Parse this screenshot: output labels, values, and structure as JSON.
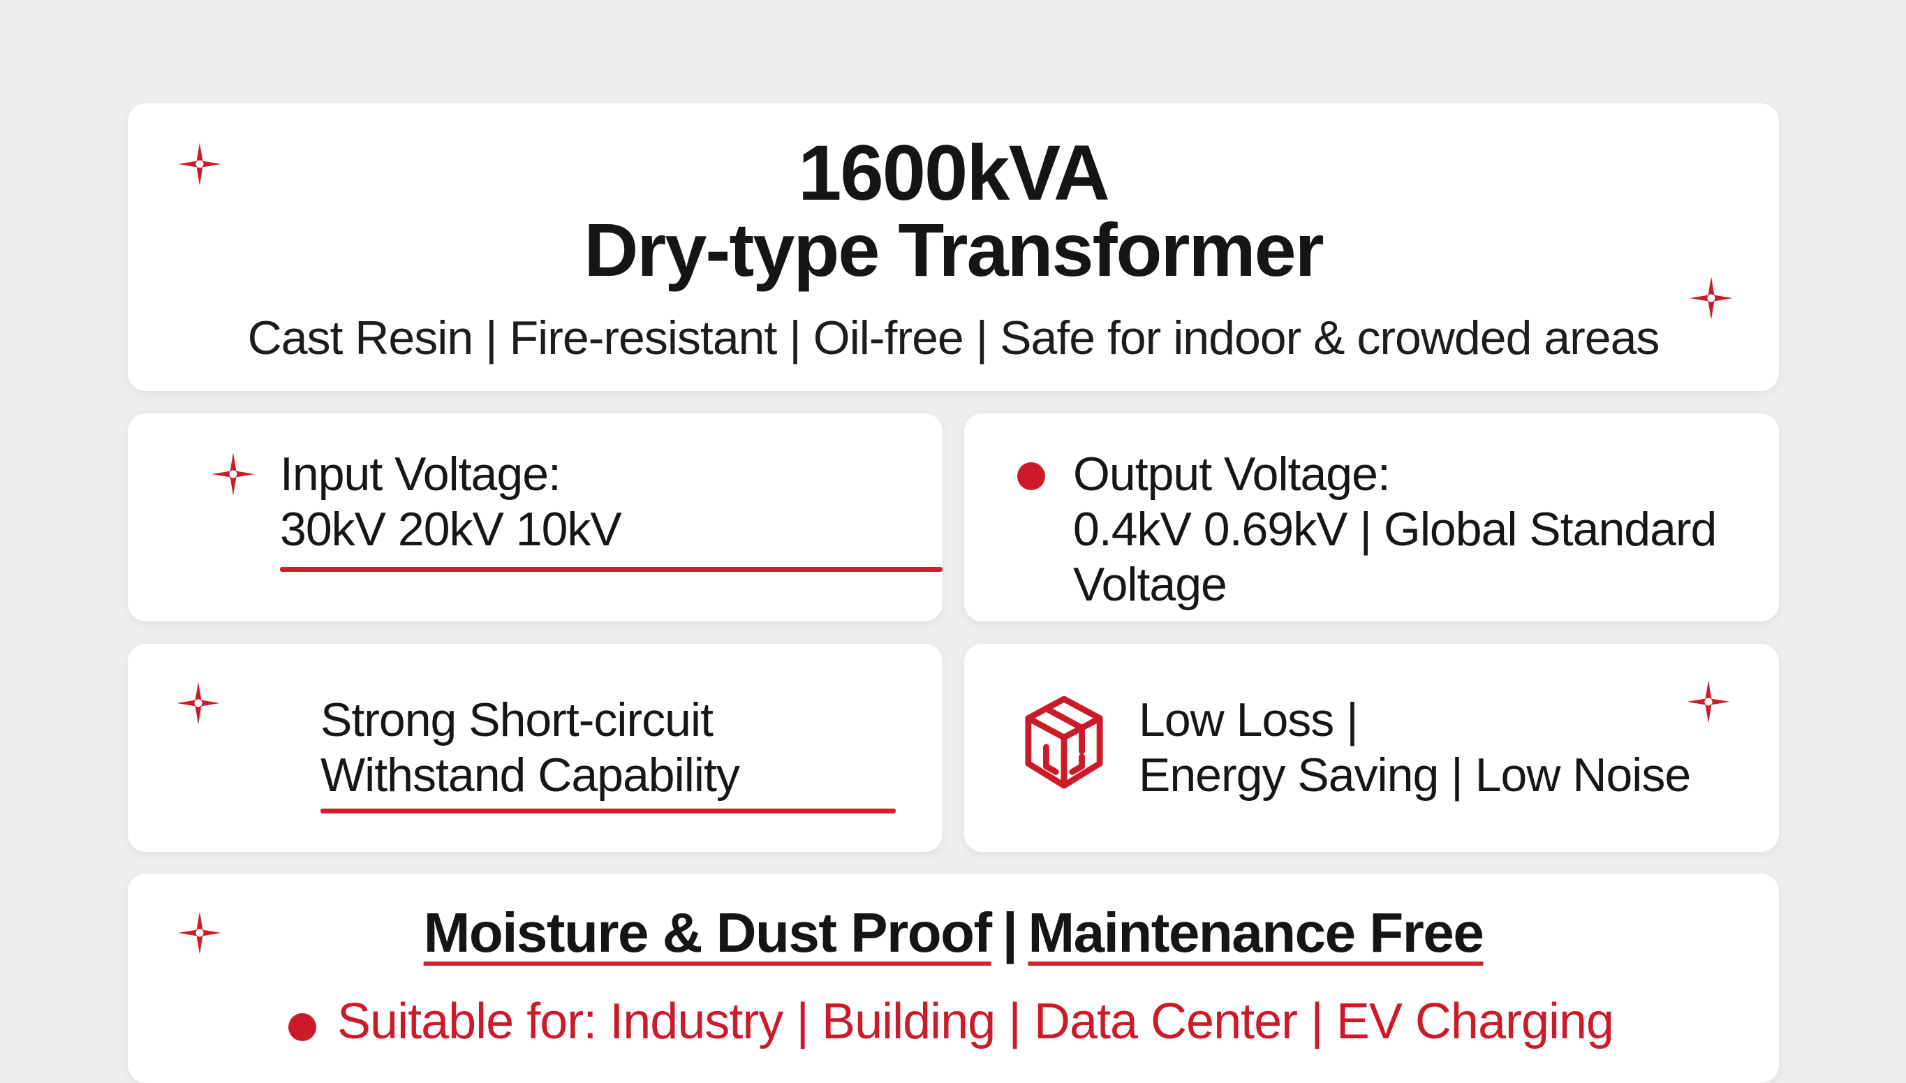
{
  "header": {
    "title_line1": "1600kVA",
    "title_line2": "Dry-type Transformer",
    "subtitle": "Cast Resin | Fire-resistant | Oil-free | Safe for indoor & crowded areas"
  },
  "input_card": {
    "line1": "Input Voltage:",
    "line2": "30kV 20kV 10kV"
  },
  "output_card": {
    "line1": "Output Voltage:",
    "line2": "0.4kV 0.69kV | Global Standard",
    "line3": "Voltage"
  },
  "short_circuit_card": {
    "line1": "Strong Short-circuit",
    "line2": "Withstand Capability"
  },
  "loss_card": {
    "line1": "Low Loss |",
    "line2": "Energy Saving | Low Noise"
  },
  "bottom_card": {
    "feature1": "Moisture & Dust Proof",
    "separator": "|",
    "feature2": "Maintenance Free",
    "uses": "Suitable for: Industry | Building | Data Center | EV Charging"
  },
  "icons": {
    "sparkle": "sparkle-icon",
    "bullet": "bullet-dot-icon",
    "cube": "cube-icon"
  },
  "colors": {
    "accent": "#cc1b28",
    "background": "#eceeef",
    "card": "#ffffff",
    "text": "#151515"
  }
}
